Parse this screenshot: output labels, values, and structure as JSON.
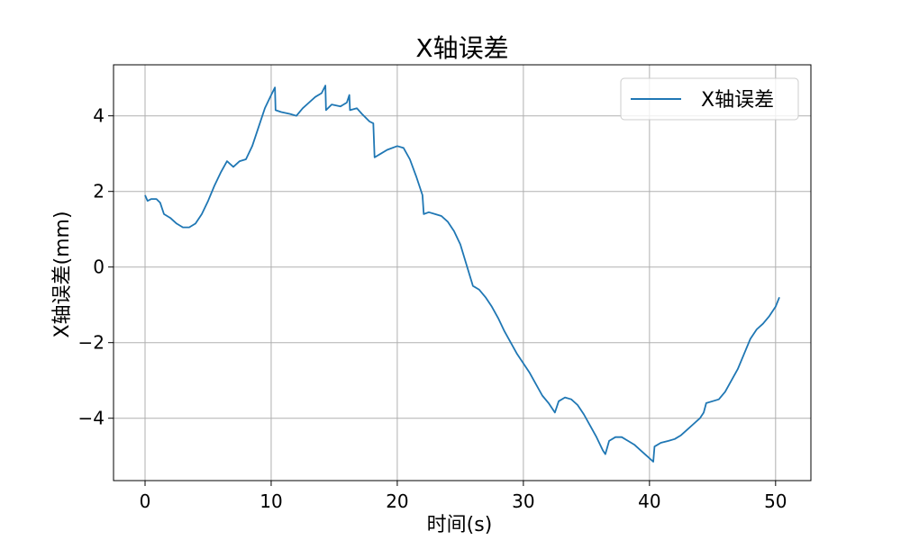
{
  "chart_data": {
    "type": "line",
    "title": "X轴误差",
    "xlabel": "时间(s)",
    "ylabel": "X轴误差(mm)",
    "xlim": [
      -2.5,
      52.8
    ],
    "ylim": [
      -5.65,
      5.35
    ],
    "xticks": [
      0,
      10,
      20,
      30,
      40,
      50
    ],
    "yticks": [
      -4,
      -2,
      0,
      2,
      4
    ],
    "grid": true,
    "legend_position": "top-right",
    "series": [
      {
        "name": "X轴误差",
        "color": "#1f77b4",
        "points": [
          [
            0,
            1.9
          ],
          [
            0.2,
            1.75
          ],
          [
            0.5,
            1.8
          ],
          [
            0.9,
            1.8
          ],
          [
            1.2,
            1.7
          ],
          [
            1.5,
            1.4
          ],
          [
            2.0,
            1.3
          ],
          [
            2.5,
            1.15
          ],
          [
            3.0,
            1.05
          ],
          [
            3.5,
            1.05
          ],
          [
            4.0,
            1.15
          ],
          [
            4.5,
            1.4
          ],
          [
            5.0,
            1.75
          ],
          [
            5.5,
            2.15
          ],
          [
            6.0,
            2.5
          ],
          [
            6.5,
            2.8
          ],
          [
            7.0,
            2.65
          ],
          [
            7.5,
            2.8
          ],
          [
            8.0,
            2.85
          ],
          [
            8.5,
            3.2
          ],
          [
            9.0,
            3.7
          ],
          [
            9.5,
            4.2
          ],
          [
            10.0,
            4.55
          ],
          [
            10.3,
            4.75
          ],
          [
            10.35,
            4.15
          ],
          [
            10.8,
            4.1
          ],
          [
            11.5,
            4.05
          ],
          [
            12.0,
            4.0
          ],
          [
            12.5,
            4.2
          ],
          [
            13.0,
            4.35
          ],
          [
            13.5,
            4.5
          ],
          [
            14.0,
            4.6
          ],
          [
            14.3,
            4.8
          ],
          [
            14.35,
            4.15
          ],
          [
            14.8,
            4.3
          ],
          [
            15.5,
            4.25
          ],
          [
            16.0,
            4.35
          ],
          [
            16.2,
            4.55
          ],
          [
            16.25,
            4.15
          ],
          [
            16.8,
            4.2
          ],
          [
            17.2,
            4.05
          ],
          [
            17.8,
            3.85
          ],
          [
            18.1,
            3.8
          ],
          [
            18.2,
            2.9
          ],
          [
            18.7,
            3.0
          ],
          [
            19.2,
            3.1
          ],
          [
            20.0,
            3.2
          ],
          [
            20.5,
            3.15
          ],
          [
            21.0,
            2.85
          ],
          [
            21.5,
            2.4
          ],
          [
            22.0,
            1.9
          ],
          [
            22.1,
            1.4
          ],
          [
            22.5,
            1.45
          ],
          [
            23.0,
            1.4
          ],
          [
            23.5,
            1.35
          ],
          [
            24.0,
            1.2
          ],
          [
            24.5,
            0.95
          ],
          [
            25.0,
            0.6
          ],
          [
            25.5,
            0.05
          ],
          [
            26.0,
            -0.5
          ],
          [
            26.5,
            -0.6
          ],
          [
            27.0,
            -0.8
          ],
          [
            27.5,
            -1.05
          ],
          [
            28.0,
            -1.35
          ],
          [
            28.5,
            -1.7
          ],
          [
            29.0,
            -2.0
          ],
          [
            29.5,
            -2.3
          ],
          [
            30.0,
            -2.55
          ],
          [
            30.5,
            -2.8
          ],
          [
            31.0,
            -3.1
          ],
          [
            31.5,
            -3.4
          ],
          [
            32.0,
            -3.6
          ],
          [
            32.5,
            -3.85
          ],
          [
            32.8,
            -3.55
          ],
          [
            33.3,
            -3.45
          ],
          [
            33.8,
            -3.5
          ],
          [
            34.3,
            -3.65
          ],
          [
            34.8,
            -3.9
          ],
          [
            35.3,
            -4.2
          ],
          [
            35.8,
            -4.5
          ],
          [
            36.3,
            -4.85
          ],
          [
            36.5,
            -4.95
          ],
          [
            36.8,
            -4.6
          ],
          [
            37.3,
            -4.5
          ],
          [
            37.8,
            -4.5
          ],
          [
            38.3,
            -4.6
          ],
          [
            38.8,
            -4.7
          ],
          [
            39.3,
            -4.85
          ],
          [
            39.8,
            -5.0
          ],
          [
            40.3,
            -5.15
          ],
          [
            40.4,
            -4.75
          ],
          [
            40.9,
            -4.65
          ],
          [
            41.5,
            -4.6
          ],
          [
            42.0,
            -4.55
          ],
          [
            42.5,
            -4.45
          ],
          [
            43.0,
            -4.3
          ],
          [
            43.5,
            -4.15
          ],
          [
            44.0,
            -4.0
          ],
          [
            44.3,
            -3.85
          ],
          [
            44.5,
            -3.6
          ],
          [
            45.0,
            -3.55
          ],
          [
            45.5,
            -3.5
          ],
          [
            46.0,
            -3.3
          ],
          [
            46.5,
            -3.0
          ],
          [
            47.0,
            -2.7
          ],
          [
            47.5,
            -2.3
          ],
          [
            48.0,
            -1.9
          ],
          [
            48.5,
            -1.65
          ],
          [
            49.0,
            -1.5
          ],
          [
            49.5,
            -1.3
          ],
          [
            50.0,
            -1.05
          ],
          [
            50.3,
            -0.8
          ]
        ]
      }
    ]
  }
}
